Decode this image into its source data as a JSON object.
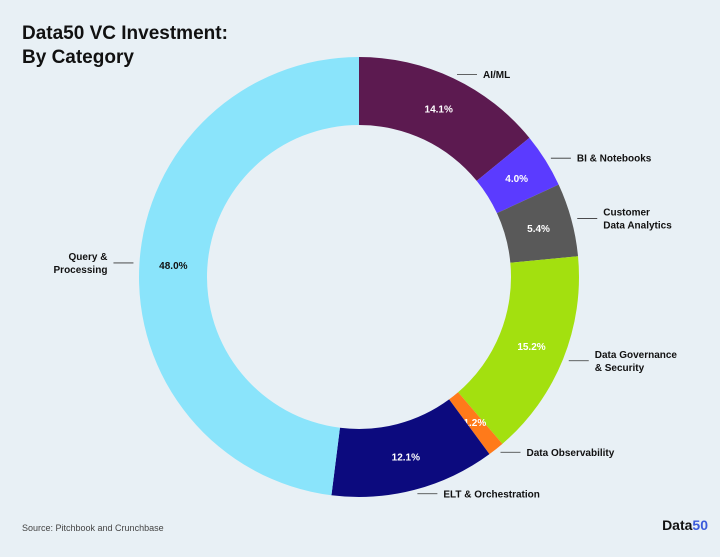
{
  "title": {
    "line1": "Data50 VC Investment:",
    "line2": "By Category"
  },
  "footer": {
    "source": "Source: Pitchbook and Crunchbase",
    "logo_main": "Data",
    "logo_accent": "50"
  },
  "chart_data": {
    "type": "pie",
    "variant": "donut",
    "title": "Data50 VC Investment: By Category",
    "unit": "%",
    "slices": [
      {
        "label": "AI/ML",
        "value": 14.1,
        "value_label": "14.1%",
        "color": "#5c1a50",
        "label_color": "#ffffff"
      },
      {
        "label": "BI & Notebooks",
        "value": 4.0,
        "value_label": "4.0%",
        "color": "#5b3bff",
        "label_color": "#ffffff"
      },
      {
        "label": "Customer\nData Analytics",
        "value": 5.4,
        "value_label": "5.4%",
        "color": "#595959",
        "label_color": "#ffffff"
      },
      {
        "label": "Data Governance\n& Security",
        "value": 15.2,
        "value_label": "15.2%",
        "color": "#a3e00f",
        "label_color": "#ffffff"
      },
      {
        "label": "Data Observability",
        "value": 1.2,
        "value_label": "1.2%",
        "color": "#ff7a1a",
        "label_color": "#ffffff"
      },
      {
        "label": "ELT & Orchestration",
        "value": 12.1,
        "value_label": "12.1%",
        "color": "#0c0a7e",
        "label_color": "#ffffff"
      },
      {
        "label": "Query &\nProcessing",
        "value": 48.0,
        "value_label": "48.0%",
        "color": "#8ae4fb",
        "label_color": "#111111"
      }
    ]
  }
}
